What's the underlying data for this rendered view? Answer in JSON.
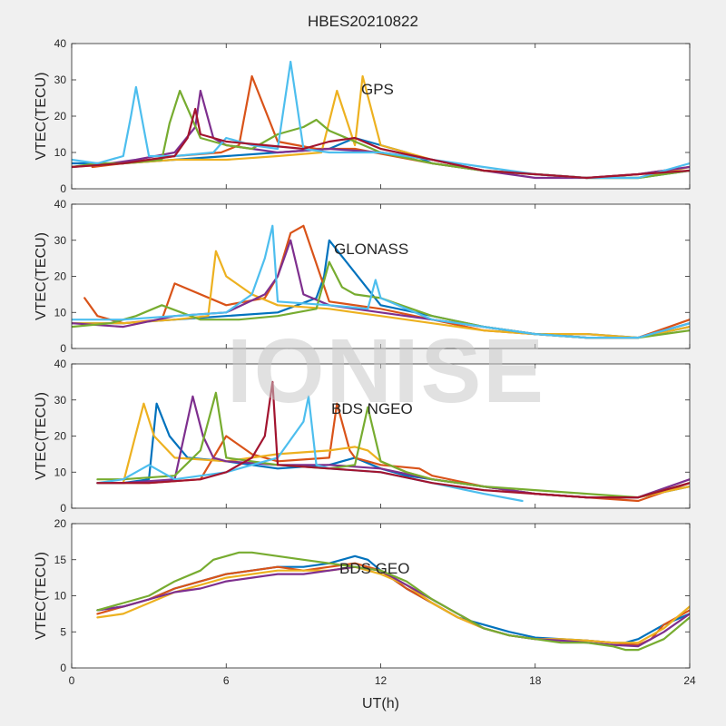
{
  "figure_title": "HBES20210822",
  "watermark": "IONISE",
  "xlabel": "UT(h)",
  "colors": [
    "#0072BD",
    "#D95319",
    "#EDB120",
    "#7E2F8E",
    "#77AC30",
    "#4DBEEE",
    "#A2142F"
  ],
  "chart_data": [
    {
      "type": "line",
      "panel_label": "GPS",
      "ylabel": "VTEC(TECU)",
      "xlim": [
        0,
        24
      ],
      "ylim": [
        0,
        40
      ],
      "xticks": [
        0,
        6,
        12,
        18,
        24
      ],
      "yticks": [
        0,
        10,
        20,
        30,
        40
      ],
      "series": [
        {
          "x": [
            0,
            2,
            4,
            6,
            8,
            10,
            11,
            12,
            13,
            14,
            16,
            18,
            20,
            22,
            24
          ],
          "y": [
            7,
            7,
            8,
            9,
            10,
            11,
            14,
            12,
            10,
            7,
            5,
            4,
            3,
            3,
            5
          ]
        },
        {
          "x": [
            0.8,
            2,
            4,
            5.8,
            6.5,
            7,
            8,
            9.5,
            11,
            12.5,
            14,
            16,
            18,
            20,
            22,
            24
          ],
          "y": [
            6,
            7,
            9,
            10,
            12,
            31,
            13,
            11,
            11,
            9,
            7,
            5,
            4,
            3,
            4,
            6
          ]
        },
        {
          "x": [
            0,
            2,
            4,
            6,
            8,
            9.7,
            10.3,
            11,
            11.3,
            12,
            14,
            16,
            18,
            20,
            22,
            24
          ],
          "y": [
            6,
            7,
            8,
            8,
            9,
            10,
            27,
            12,
            31,
            12,
            8,
            5,
            4,
            3,
            3,
            6
          ]
        },
        {
          "x": [
            0,
            1.5,
            2.5,
            4,
            4.8,
            5,
            5.5,
            6,
            8,
            10,
            12,
            14,
            16,
            18,
            20,
            22,
            24
          ],
          "y": [
            6,
            7,
            8,
            10,
            17,
            27,
            14,
            12,
            10,
            11,
            10,
            8,
            5,
            3,
            3,
            4,
            6
          ]
        },
        {
          "x": [
            0,
            1,
            2,
            3.5,
            3.8,
            4.2,
            5,
            6,
            7,
            8,
            9,
            9.5,
            10,
            12,
            14,
            16,
            18,
            20,
            22,
            24
          ],
          "y": [
            6,
            7,
            7,
            8,
            18,
            27,
            14,
            12,
            11,
            15,
            17,
            19,
            16,
            10,
            7,
            5,
            4,
            3,
            3,
            5
          ]
        },
        {
          "x": [
            0,
            1,
            2,
            2.3,
            2.5,
            3,
            4,
            5.5,
            6,
            7,
            8,
            8.5,
            9,
            10,
            12,
            14,
            16,
            18,
            20,
            22,
            24
          ],
          "y": [
            8,
            7,
            9,
            20,
            28,
            9,
            9,
            10,
            14,
            12,
            11,
            35,
            11,
            10,
            10,
            8,
            6,
            4,
            3,
            3,
            7
          ]
        },
        {
          "x": [
            0,
            2,
            4,
            4.5,
            4.8,
            5,
            6,
            7.5,
            9,
            10,
            11,
            12,
            14,
            16,
            18,
            20,
            22,
            24
          ],
          "y": [
            6,
            7,
            9,
            14,
            22,
            15,
            13,
            12,
            11,
            13,
            14,
            11,
            8,
            5,
            4,
            3,
            4,
            5
          ]
        }
      ]
    },
    {
      "type": "line",
      "panel_label": "GLONASS",
      "ylabel": "VTEC(TECU)",
      "xlim": [
        0,
        24
      ],
      "ylim": [
        0,
        40
      ],
      "xticks": [
        0,
        6,
        12,
        18,
        24
      ],
      "yticks": [
        0,
        10,
        20,
        30,
        40
      ],
      "series": [
        {
          "x": [
            0,
            2,
            4,
            6,
            8,
            9.5,
            9.8,
            10,
            12,
            14,
            16,
            18,
            20,
            22,
            24
          ],
          "y": [
            7,
            7,
            8,
            9,
            10,
            14,
            20,
            30,
            12,
            9,
            6,
            4,
            4,
            3,
            6
          ]
        },
        {
          "x": [
            0.5,
            1,
            2,
            3.5,
            4,
            6,
            7.5,
            8,
            8.5,
            9,
            10,
            12,
            14,
            16,
            18,
            20,
            22,
            24
          ],
          "y": [
            14,
            9,
            7,
            8,
            18,
            12,
            14,
            20,
            32,
            34,
            13,
            11,
            8,
            5,
            4,
            3,
            3,
            8
          ]
        },
        {
          "x": [
            0,
            2,
            4,
            5.3,
            5.6,
            6,
            7,
            8,
            10,
            11,
            12,
            14,
            16,
            18,
            20,
            22,
            24
          ],
          "y": [
            7,
            7,
            8,
            9,
            27,
            20,
            15,
            12,
            11,
            10,
            9,
            7,
            5,
            4,
            4,
            3,
            6
          ]
        },
        {
          "x": [
            0,
            2,
            4,
            6,
            7.5,
            8,
            8.5,
            9,
            10,
            12,
            14,
            16,
            18,
            20,
            22,
            24
          ],
          "y": [
            7,
            6,
            9,
            10,
            15,
            20,
            30,
            15,
            12,
            10,
            8,
            6,
            4,
            3,
            3,
            7
          ]
        },
        {
          "x": [
            0,
            1.5,
            2.5,
            3.5,
            5,
            6.5,
            8,
            9.5,
            10,
            10.5,
            11,
            12,
            14,
            16,
            18,
            20,
            22,
            24
          ],
          "y": [
            6,
            7,
            9,
            12,
            8,
            8,
            9,
            11,
            24,
            17,
            15,
            14,
            9,
            6,
            4,
            3,
            3,
            5
          ]
        },
        {
          "x": [
            0,
            2,
            4,
            6,
            7,
            7.5,
            7.8,
            8,
            10,
            11.5,
            11.8,
            12,
            14,
            16,
            18,
            20,
            22,
            24
          ],
          "y": [
            8,
            8,
            9,
            10,
            15,
            25,
            34,
            13,
            12,
            11,
            19,
            14,
            8,
            6,
            4,
            3,
            3,
            7
          ]
        }
      ]
    },
    {
      "type": "line",
      "panel_label": "BDS NGEO",
      "ylabel": "VTEC(TECU)",
      "xlim": [
        0,
        24
      ],
      "ylim": [
        0,
        40
      ],
      "xticks": [
        0,
        6,
        12,
        18,
        24
      ],
      "yticks": [
        0,
        10,
        20,
        30,
        40
      ],
      "series": [
        {
          "x": [
            1,
            2,
            3,
            3.3,
            3.8,
            4.5,
            6,
            8,
            10,
            11,
            12,
            13,
            14,
            16,
            18,
            20,
            22,
            24
          ],
          "y": [
            7,
            7,
            8,
            29,
            20,
            14,
            13,
            11,
            12,
            14,
            11,
            9,
            8,
            6,
            4,
            3,
            3,
            6
          ]
        },
        {
          "x": [
            1,
            3,
            5,
            6,
            7,
            8,
            10,
            10.3,
            10.8,
            11,
            12,
            13.5,
            14,
            16,
            18,
            20,
            22,
            24
          ],
          "y": [
            7,
            7,
            8,
            20,
            15,
            13,
            14,
            29,
            16,
            14,
            12,
            11,
            9,
            6,
            4,
            3,
            2,
            7
          ]
        },
        {
          "x": [
            1,
            2,
            2.8,
            3.2,
            4,
            6,
            8,
            10,
            11,
            11.5,
            12,
            13,
            14,
            16,
            18,
            20,
            22,
            24
          ],
          "y": [
            7,
            7,
            29,
            20,
            14,
            13,
            15,
            16,
            17,
            16,
            13,
            10,
            8,
            6,
            4,
            3,
            3,
            6
          ]
        },
        {
          "x": [
            1,
            2,
            4,
            4.7,
            5.1,
            5.5,
            6,
            8,
            10,
            12,
            14,
            16,
            18,
            20,
            22,
            24
          ],
          "y": [
            7,
            7,
            8,
            31,
            20,
            14,
            13,
            12,
            12,
            11,
            8,
            6,
            4,
            3,
            3,
            8
          ]
        },
        {
          "x": [
            1,
            2,
            4,
            5,
            5.6,
            6,
            8,
            10,
            11,
            11.5,
            12,
            13,
            14,
            16,
            18,
            20,
            22,
            24
          ],
          "y": [
            8,
            8,
            9,
            16,
            32,
            14,
            12,
            11,
            12,
            28,
            13,
            10,
            8,
            6,
            5,
            4,
            3,
            7
          ]
        },
        {
          "x": [
            1,
            2,
            3,
            4,
            6,
            7,
            8,
            9,
            9.2,
            9.5,
            10,
            12,
            14,
            16,
            17.5
          ],
          "y": [
            7,
            8,
            12,
            8,
            10,
            12,
            14,
            24,
            31,
            12,
            11,
            10,
            7,
            4,
            2
          ]
        },
        {
          "x": [
            1,
            3,
            5,
            6,
            7,
            7.5,
            7.8,
            8,
            10,
            12,
            14,
            16,
            18,
            20,
            22,
            24
          ],
          "y": [
            7,
            7,
            8,
            10,
            14,
            20,
            35,
            12,
            11,
            10,
            7,
            5,
            4,
            3,
            3,
            7
          ]
        }
      ]
    },
    {
      "type": "line",
      "panel_label": "BDS GEO",
      "ylabel": "VTEC(TECU)",
      "xlim": [
        0,
        24
      ],
      "ylim": [
        0,
        20
      ],
      "xticks": [
        0,
        6,
        12,
        18,
        24
      ],
      "yticks": [
        0,
        5,
        10,
        15,
        20
      ],
      "series": [
        {
          "x": [
            1,
            2,
            3,
            4,
            5,
            6,
            7,
            8,
            9,
            10,
            11,
            11.5,
            12,
            13,
            14,
            15,
            16,
            17,
            18,
            19,
            20,
            21,
            21.5,
            22,
            23,
            24
          ],
          "y": [
            8,
            8.5,
            9.5,
            11,
            12,
            13,
            13.5,
            14,
            14,
            14.5,
            15.5,
            15,
            13.5,
            11,
            9,
            7,
            6,
            5,
            4.2,
            4,
            3.8,
            3.5,
            3.5,
            4,
            6,
            7.5
          ]
        },
        {
          "x": [
            1,
            2,
            3,
            4,
            5,
            6,
            7,
            8,
            9,
            10,
            11,
            12,
            13,
            14,
            15,
            16,
            17,
            18,
            19,
            20,
            21,
            22,
            22.5,
            23,
            24
          ],
          "y": [
            7.5,
            8.5,
            9.5,
            11,
            12,
            13,
            13.5,
            14,
            13.5,
            14,
            14.5,
            13.5,
            11,
            9,
            7,
            5.5,
            4.5,
            4,
            3.8,
            3.8,
            3.5,
            3.2,
            4,
            6,
            8
          ]
        },
        {
          "x": [
            1,
            2,
            3,
            4,
            5,
            6,
            7,
            8,
            9,
            10,
            11,
            12,
            13,
            14,
            15,
            16,
            17,
            18,
            19,
            20,
            21,
            22,
            23,
            24
          ],
          "y": [
            7,
            7.5,
            9,
            10.5,
            11.5,
            12.5,
            13,
            13.5,
            13.5,
            13.5,
            14,
            13,
            11.5,
            9,
            7,
            5.5,
            4.5,
            4,
            4,
            3.8,
            3.5,
            3.5,
            5.5,
            8.5
          ]
        },
        {
          "x": [
            1,
            2,
            3,
            4,
            5,
            6,
            7,
            8,
            9,
            10,
            11,
            12,
            13,
            14,
            15,
            16,
            17,
            18,
            19,
            20,
            21,
            22,
            23,
            24
          ],
          "y": [
            8,
            8.5,
            9.5,
            10.5,
            11,
            12,
            12.5,
            13,
            13,
            13.5,
            14,
            13.5,
            11.5,
            9.5,
            7.5,
            5.5,
            4.5,
            4,
            3.8,
            3.5,
            3.2,
            3,
            5,
            7.5
          ]
        },
        {
          "x": [
            1,
            2,
            3,
            4,
            5,
            5.5,
            6,
            6.5,
            7,
            8,
            9,
            10,
            11,
            12,
            13,
            14,
            15,
            16,
            17,
            18,
            19,
            20,
            21,
            21.5,
            22,
            23,
            24
          ],
          "y": [
            8,
            9,
            10,
            12,
            13.5,
            15,
            15.5,
            16,
            16,
            15.5,
            15,
            14.5,
            14,
            13.5,
            12,
            9.5,
            7.5,
            5.5,
            4.5,
            4,
            3.5,
            3.5,
            3,
            2.5,
            2.5,
            4,
            7
          ]
        }
      ]
    }
  ]
}
